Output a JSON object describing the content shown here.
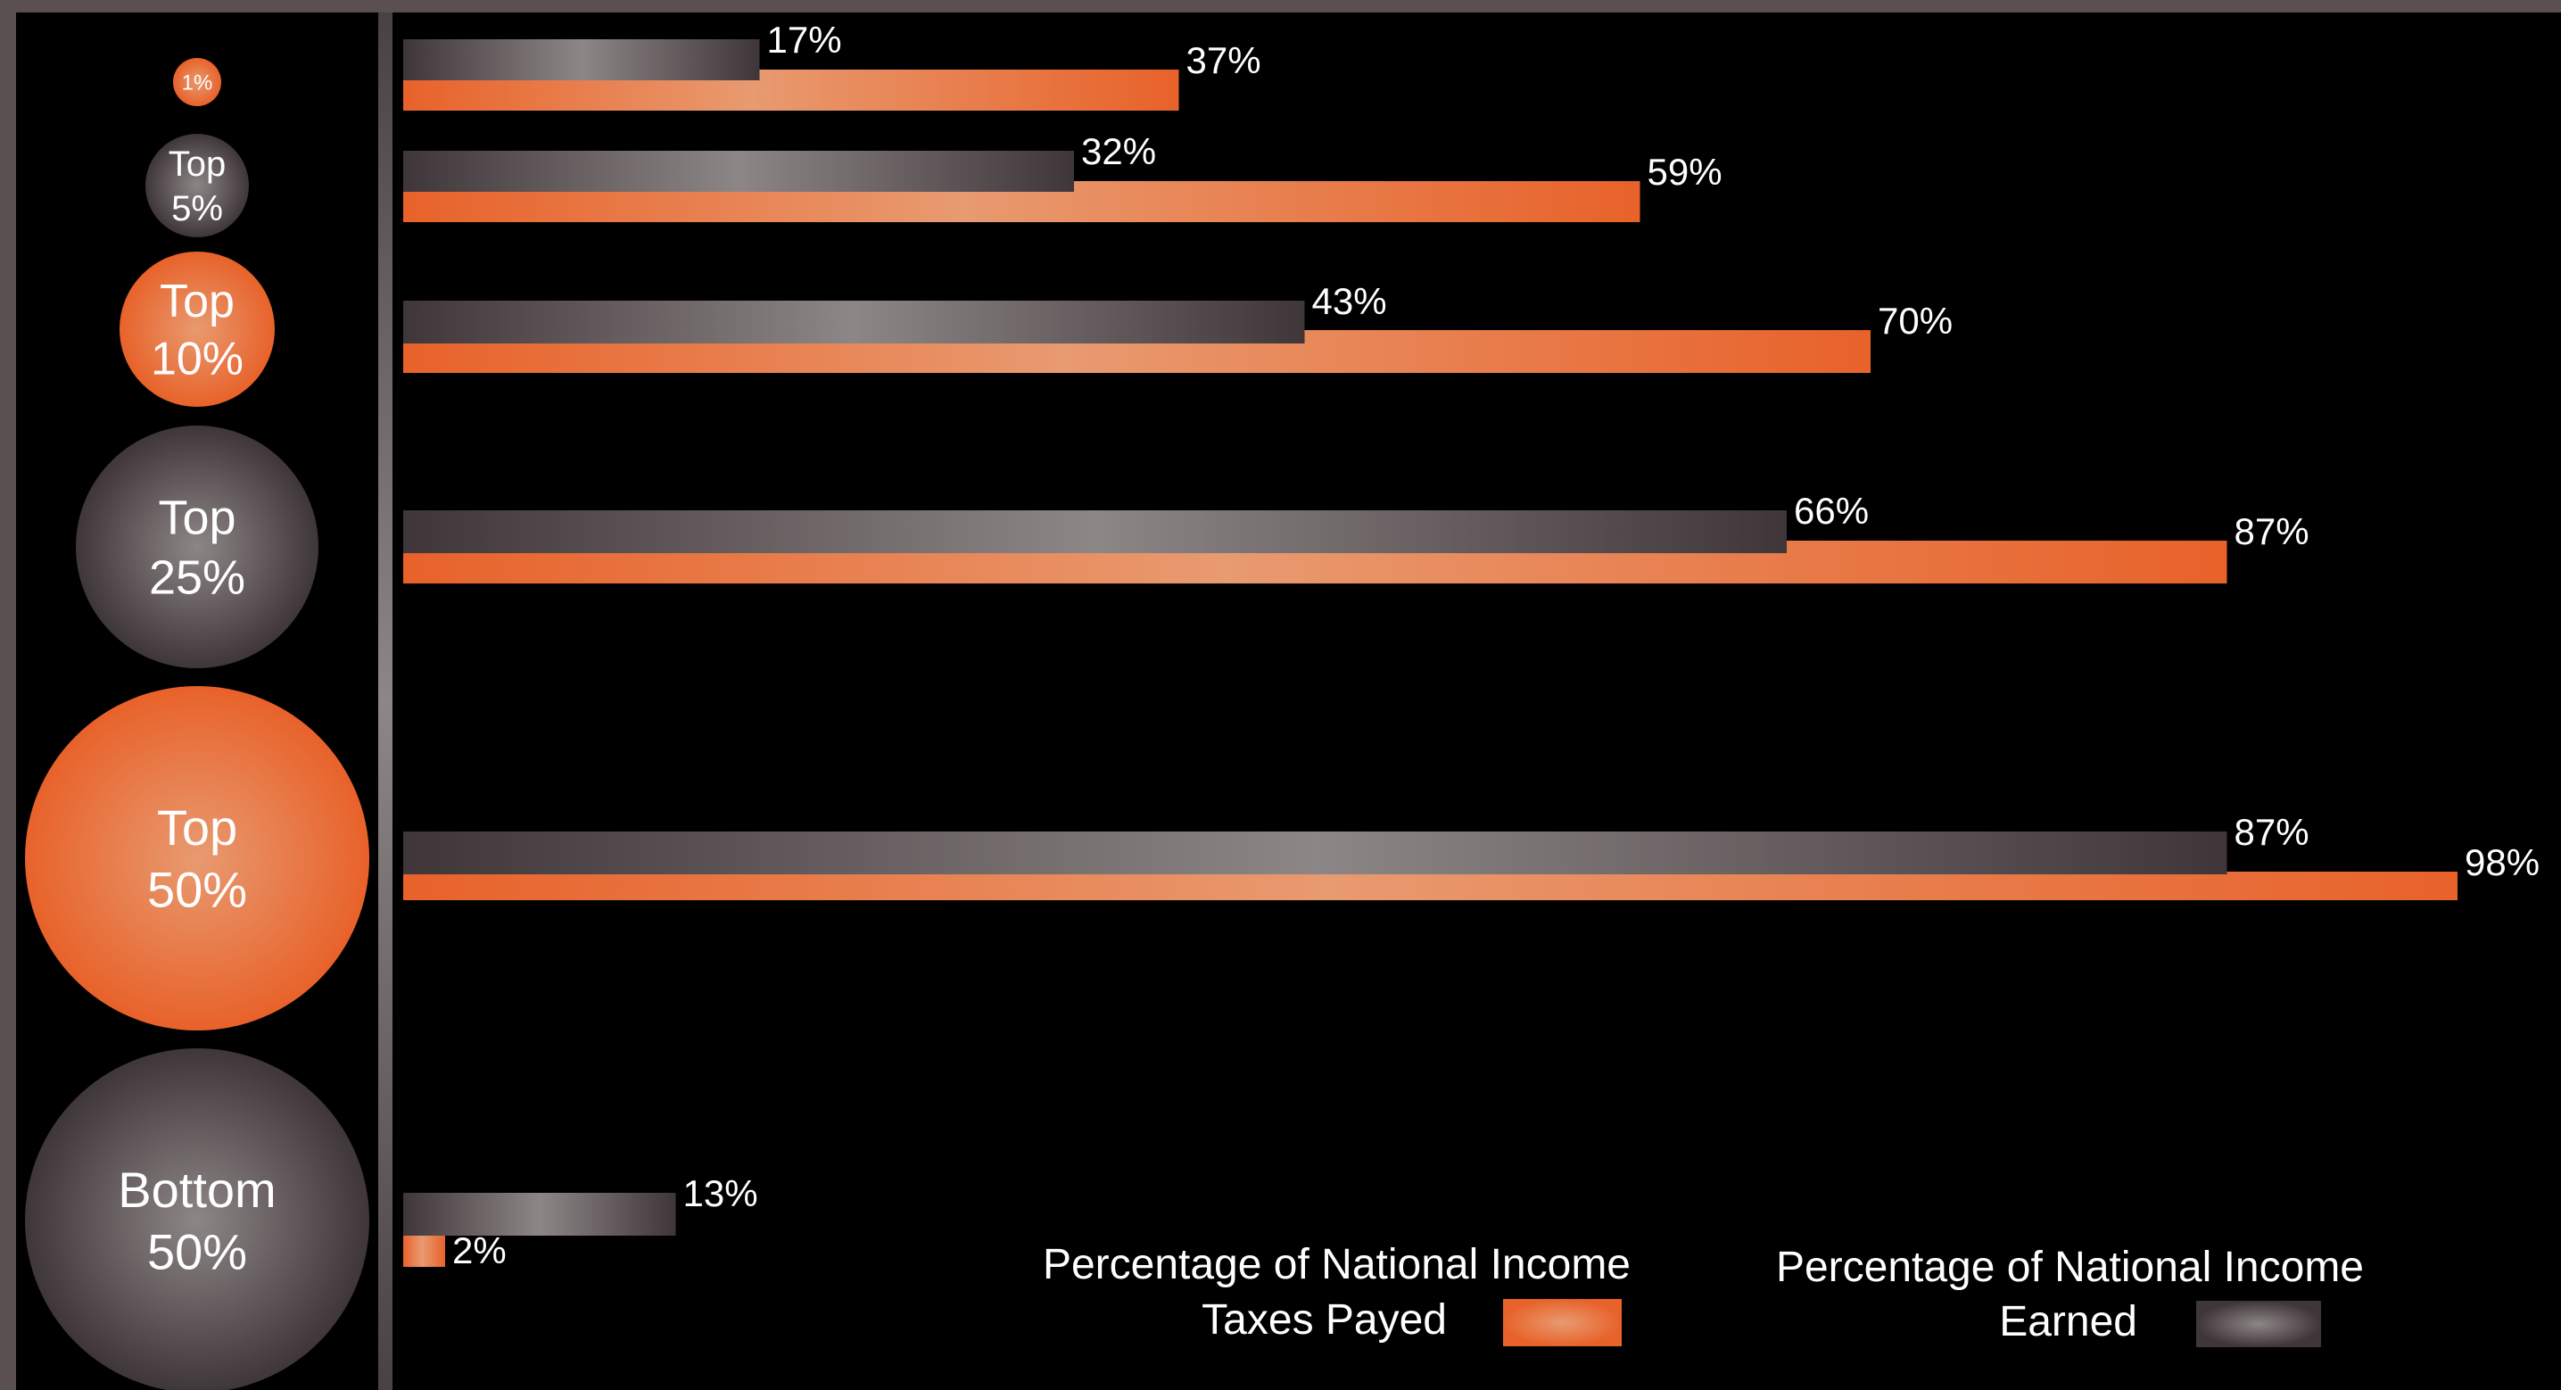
{
  "colors": {
    "taxes": "#e8622a",
    "taxes_highlight": "#e89a70",
    "earned": "#3f3639",
    "earned_highlight": "#8d8686",
    "frame": "#5a5052",
    "background": "#000000",
    "text": "#ffffff"
  },
  "chart_data": {
    "type": "bar",
    "orientation": "horizontal",
    "categories": [
      {
        "line1": "1%",
        "line2": ""
      },
      {
        "line1": "Top",
        "line2": "5%"
      },
      {
        "line1": "Top",
        "line2": "10%"
      },
      {
        "line1": "Top",
        "line2": "25%"
      },
      {
        "line1": "Top",
        "line2": "50%"
      },
      {
        "line1": "Bottom",
        "line2": "50%"
      }
    ],
    "category_bubble_colors": [
      "taxes",
      "earned",
      "taxes",
      "earned",
      "taxes",
      "earned"
    ],
    "series": [
      {
        "key": "earned",
        "legend_line1": "Percentage of National Income",
        "legend_line2": "Earned",
        "values": [
          17,
          32,
          43,
          66,
          87,
          13
        ]
      },
      {
        "key": "taxes",
        "legend_line1": "Percentage of National Income",
        "legend_line2": "Taxes Payed",
        "values": [
          37,
          59,
          70,
          87,
          98,
          2
        ]
      }
    ],
    "value_labels": {
      "earned": [
        "17%",
        "32%",
        "43%",
        "66%",
        "87%",
        "13%"
      ],
      "taxes": [
        "37%",
        "59%",
        "70%",
        "87%",
        "98%",
        "2%"
      ]
    },
    "xlim": [
      0,
      100
    ],
    "grid": false,
    "legend_position": "bottom-right"
  }
}
